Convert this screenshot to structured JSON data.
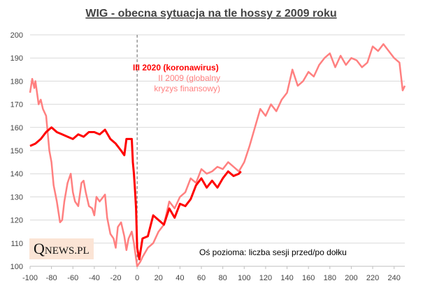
{
  "chart_data": {
    "type": "line",
    "title": "WIG - obecna sytuacja na tle hossy z 2009 roku",
    "annotations": [
      "Oś pozioma: liczba sesji przed/po dołku",
      "QNEWS.PL"
    ],
    "xlim": [
      -100,
      250
    ],
    "ylim": [
      100,
      200
    ],
    "xticks": [
      -100,
      -80,
      -60,
      -40,
      -20,
      0,
      20,
      40,
      60,
      80,
      100,
      120,
      140,
      160,
      180,
      200,
      220,
      240
    ],
    "yticks": [
      100,
      110,
      120,
      130,
      140,
      150,
      160,
      170,
      180,
      190,
      200
    ],
    "grid": true,
    "series": [
      {
        "name": "III 2020 (koronawirus)",
        "color": "#ff0000",
        "width": 3,
        "x": [
          -100,
          -95,
          -90,
          -85,
          -80,
          -75,
          -70,
          -65,
          -60,
          -55,
          -50,
          -45,
          -40,
          -35,
          -30,
          -25,
          -20,
          -15,
          -12,
          -10,
          -8,
          -5,
          -4,
          -3,
          -2,
          -1,
          0,
          2,
          5,
          10,
          15,
          20,
          25,
          30,
          35,
          40,
          45,
          50,
          55,
          60,
          65,
          70,
          75,
          80,
          85,
          90,
          95,
          97
        ],
        "values": [
          152,
          153,
          155,
          158,
          160,
          158,
          157,
          156,
          155,
          157,
          156,
          158,
          158,
          157,
          159,
          155,
          153,
          150,
          148,
          155,
          155,
          155,
          145,
          140,
          133,
          125,
          108,
          103,
          112,
          113,
          122,
          120,
          118,
          125,
          121,
          127,
          126,
          129,
          135,
          138,
          134,
          137,
          134,
          138,
          141,
          139,
          140,
          141
        ]
      },
      {
        "name": "II 2009 (globalny kryzys finansowy)",
        "color": "#ff8080",
        "width": 2.5,
        "x": [
          -100,
          -98,
          -96,
          -95,
          -92,
          -90,
          -88,
          -85,
          -82,
          -80,
          -78,
          -75,
          -72,
          -70,
          -68,
          -65,
          -62,
          -60,
          -58,
          -55,
          -52,
          -50,
          -48,
          -45,
          -42,
          -40,
          -38,
          -35,
          -30,
          -28,
          -25,
          -22,
          -20,
          -18,
          -15,
          -12,
          -10,
          -8,
          -5,
          -3,
          0,
          3,
          5,
          10,
          15,
          20,
          25,
          30,
          35,
          40,
          45,
          50,
          55,
          60,
          65,
          70,
          75,
          80,
          85,
          90,
          95,
          100,
          105,
          110,
          115,
          120,
          125,
          130,
          135,
          140,
          145,
          150,
          155,
          160,
          165,
          170,
          175,
          180,
          185,
          190,
          195,
          200,
          205,
          210,
          215,
          220,
          225,
          230,
          235,
          240,
          245,
          248,
          250
        ],
        "values": [
          175,
          181,
          177,
          180,
          170,
          172,
          168,
          165,
          150,
          145,
          135,
          128,
          119,
          120,
          128,
          136,
          140,
          132,
          128,
          126,
          136,
          137,
          132,
          126,
          125,
          122,
          130,
          128,
          131,
          121,
          114,
          112,
          108,
          117,
          119,
          113,
          107,
          112,
          115,
          110,
          100,
          102,
          104,
          108,
          110,
          115,
          118,
          128,
          125,
          130,
          132,
          138,
          136,
          142,
          140,
          141,
          143,
          142,
          145,
          143,
          141,
          145,
          152,
          160,
          168,
          165,
          170,
          167,
          172,
          175,
          185,
          178,
          180,
          184,
          182,
          187,
          190,
          192,
          186,
          191,
          187,
          190,
          189,
          186,
          188,
          195,
          193,
          196,
          193,
          190,
          188,
          176,
          178
        ]
      }
    ]
  }
}
